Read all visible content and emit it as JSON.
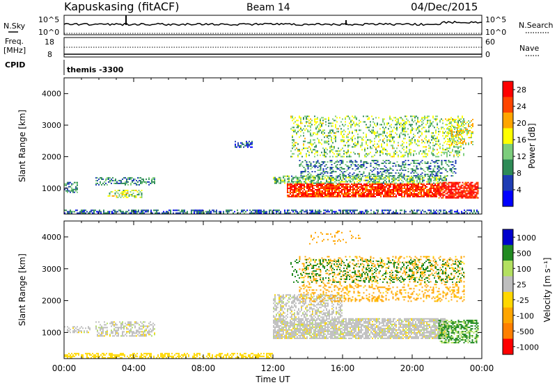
{
  "header": {
    "station": "Kapuskasing (fitACF)",
    "beam": "Beam 14",
    "date": "04/Dec/2015"
  },
  "params": {
    "nsky_label": "N.Sky",
    "nsky_top": "10^5",
    "nsky_bottom": "10^0",
    "nsearch_label": "N.Search",
    "nsearch_top": "10^5",
    "nsearch_bottom": "10^0",
    "freq_label": "Freq.",
    "freq_unit": "[MHz]",
    "freq_top": "18",
    "freq_bottom": "8",
    "nave_label": "Nave",
    "nave_top": "60",
    "nave_bottom": "0",
    "cpid_label": "CPID",
    "cpid_value": "themis -3300"
  },
  "colors": {
    "power": [
      "#0000ff",
      "#1e3cb4",
      "#2e8b57",
      "#7ccd7c",
      "#ffff00",
      "#ffa500",
      "#ff4500",
      "#ff0000"
    ],
    "velocity": [
      "#ff0000",
      "#ff7f00",
      "#ffa500",
      "#ffd700",
      "#bebebe",
      "#b3e060",
      "#228b22",
      "#0000cd"
    ]
  },
  "chart_data": [
    {
      "type": "heatmap",
      "title": "",
      "xlabel": "Time UT",
      "ylabel": "Slant Range [km]",
      "x_ticks": [
        "00:00",
        "04:00",
        "08:00",
        "12:00",
        "16:00",
        "20:00",
        "00:00"
      ],
      "y_ticks": [
        1000,
        2000,
        3000,
        4000
      ],
      "xlim_hours": [
        0,
        24
      ],
      "ylim_km": [
        180,
        4500
      ],
      "colorbar": {
        "label": "Power [dB]",
        "ticks": [
          4,
          8,
          12,
          16,
          20,
          24,
          28
        ],
        "range": [
          0,
          30
        ]
      },
      "regions": [
        {
          "t": [
            0.0,
            23.8
          ],
          "r": [
            200,
            320
          ],
          "value": 7,
          "density": 0.55
        },
        {
          "t": [
            1.8,
            5.2
          ],
          "r": [
            1100,
            1350
          ],
          "value": 10,
          "density": 0.5
        },
        {
          "t": [
            2.5,
            4.5
          ],
          "r": [
            700,
            950
          ],
          "value": 15,
          "density": 0.5
        },
        {
          "t": [
            0.0,
            0.8
          ],
          "r": [
            850,
            1200
          ],
          "value": 9,
          "density": 0.5
        },
        {
          "t": [
            9.8,
            10.8
          ],
          "r": [
            2300,
            2500
          ],
          "value": 6,
          "density": 0.6
        },
        {
          "t": [
            12.0,
            22.0
          ],
          "r": [
            1150,
            1400
          ],
          "value": 12,
          "density": 0.6
        },
        {
          "t": [
            12.8,
            21.5
          ],
          "r": [
            750,
            1150
          ],
          "value": 26,
          "density": 0.85
        },
        {
          "t": [
            13.5,
            22.5
          ],
          "r": [
            1400,
            1900
          ],
          "value": 9,
          "density": 0.35
        },
        {
          "t": [
            13.0,
            23.0
          ],
          "r": [
            2000,
            3300
          ],
          "value": 14,
          "density": 0.3
        },
        {
          "t": [
            21.5,
            23.8
          ],
          "r": [
            700,
            1200
          ],
          "value": 27,
          "density": 0.8
        },
        {
          "t": [
            22.0,
            23.5
          ],
          "r": [
            2400,
            3200
          ],
          "value": 17,
          "density": 0.4
        }
      ]
    },
    {
      "type": "heatmap",
      "title": "",
      "xlabel": "Time UT",
      "ylabel": "Slant Range [km]",
      "x_ticks": [
        "00:00",
        "04:00",
        "08:00",
        "12:00",
        "16:00",
        "20:00",
        "00:00"
      ],
      "y_ticks": [
        1000,
        2000,
        3000,
        4000
      ],
      "xlim_hours": [
        0,
        24
      ],
      "ylim_km": [
        180,
        4500
      ],
      "colorbar": {
        "label": "Velocity [m s⁻¹]",
        "ticks": [
          1000,
          500,
          100,
          25,
          -25,
          -100,
          -500,
          -1000
        ]
      },
      "regions": [
        {
          "t": [
            0.0,
            12.0
          ],
          "r": [
            200,
            360
          ],
          "value": -60,
          "density": 0.55
        },
        {
          "t": [
            1.8,
            5.2
          ],
          "r": [
            900,
            1350
          ],
          "value": 0,
          "density": 0.5
        },
        {
          "t": [
            0.0,
            1.5
          ],
          "r": [
            1000,
            1200
          ],
          "value": 0,
          "density": 0.4
        },
        {
          "t": [
            12.0,
            22.0
          ],
          "r": [
            800,
            1450
          ],
          "value": 0,
          "density": 0.8
        },
        {
          "t": [
            12.0,
            16.0
          ],
          "r": [
            1500,
            2200
          ],
          "value": 0,
          "density": 0.5
        },
        {
          "t": [
            13.5,
            23.0
          ],
          "r": [
            2000,
            3400
          ],
          "value": -150,
          "density": 0.25
        },
        {
          "t": [
            13.0,
            23.0
          ],
          "r": [
            2600,
            3300
          ],
          "value": 200,
          "density": 0.2
        },
        {
          "t": [
            21.5,
            23.8
          ],
          "r": [
            700,
            1400
          ],
          "value": 120,
          "density": 0.6
        },
        {
          "t": [
            14.0,
            17.0
          ],
          "r": [
            3800,
            4200
          ],
          "value": -300,
          "density": 0.1
        }
      ]
    }
  ]
}
